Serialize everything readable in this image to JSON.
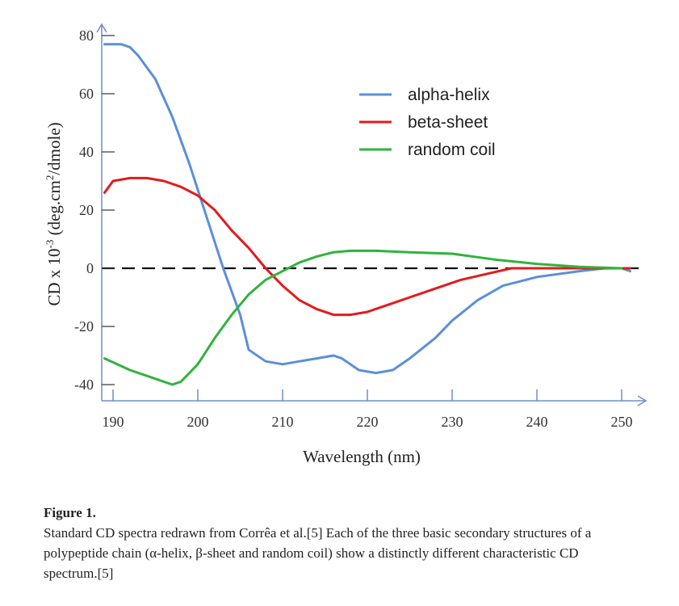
{
  "chart_data": {
    "type": "line",
    "xlabel": "Wavelength (nm)",
    "ylabel_parts": [
      "CD x 10",
      "-3",
      " (deg.cm",
      "2",
      "/dmole)"
    ],
    "xlim": [
      190,
      252
    ],
    "ylim": [
      -42,
      80
    ],
    "x_ticks": [
      190,
      200,
      210,
      220,
      230,
      240,
      250
    ],
    "y_ticks": [
      80,
      60,
      40,
      20,
      0,
      -20,
      -40
    ],
    "zero_line": true,
    "legend_position": "top-right",
    "series": [
      {
        "name": "alpha-helix",
        "color": "#5b8fd9",
        "x": [
          189,
          191,
          192,
          193,
          195,
          197,
          199,
          201,
          203,
          205,
          206,
          208,
          210,
          212,
          214,
          216,
          217,
          219,
          221,
          223,
          225,
          228,
          230,
          233,
          236,
          240,
          245,
          248,
          250,
          251
        ],
        "y": [
          77,
          77,
          76,
          73,
          65,
          52,
          36,
          18,
          0,
          -16,
          -28,
          -32,
          -33,
          -32,
          -31,
          -30,
          -31,
          -35,
          -36,
          -35,
          -31,
          -24,
          -18,
          -11,
          -6,
          -3,
          -1,
          0,
          0,
          -1
        ]
      },
      {
        "name": "beta-sheet",
        "color": "#e21b1b",
        "x": [
          189,
          190,
          192,
          194,
          196,
          198,
          200,
          202,
          204,
          206,
          208,
          210,
          212,
          214,
          216,
          218,
          220,
          222,
          225,
          228,
          231,
          234,
          237,
          240,
          243,
          246,
          249,
          251
        ],
        "y": [
          26,
          30,
          31,
          31,
          30,
          28,
          25,
          20,
          13,
          7,
          0,
          -6,
          -11,
          -14,
          -16,
          -16,
          -15,
          -13,
          -10,
          -7,
          -4,
          -2,
          0,
          0,
          0,
          0,
          0,
          0
        ]
      },
      {
        "name": "random coil",
        "color": "#2fb33d",
        "x": [
          189,
          192,
          195,
          197,
          198,
          200,
          202,
          204,
          206,
          208,
          210,
          212,
          214,
          216,
          218,
          221,
          225,
          230,
          235,
          240,
          245,
          250
        ],
        "y": [
          -31,
          -35,
          -38,
          -40,
          -39,
          -33,
          -24,
          -16,
          -9,
          -4,
          -1,
          2,
          4,
          5.5,
          6,
          6,
          5.5,
          5,
          3,
          1.5,
          0.5,
          0
        ]
      }
    ]
  },
  "caption": {
    "title": "Figure 1.",
    "text": "Standard CD spectra redrawn from Corrêa et al.[5] Each of the three basic secondary structures of a polypeptide chain (α-helix, β-sheet and random coil) show a distinctly different characteristic CD spectrum.[5]"
  }
}
